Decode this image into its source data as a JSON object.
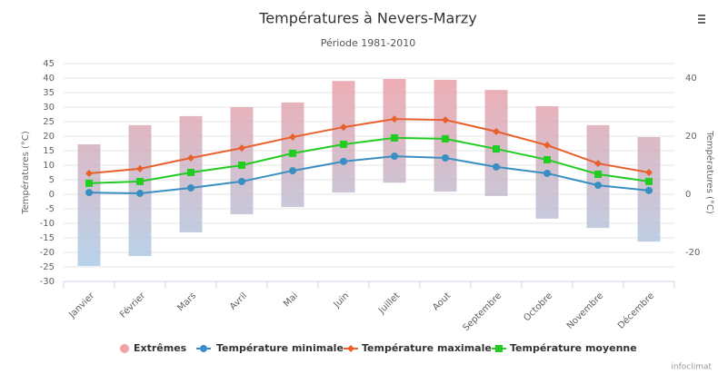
{
  "chart_data": {
    "type": "line",
    "title": "Températures à Nevers-Marzy",
    "subtitle": "Période 1981-2010",
    "y_label": "Températures (°C)",
    "y2_label": "Températures (°C)",
    "credits": "infoclimat",
    "categories": [
      "Janvier",
      "Février",
      "Mars",
      "Avril",
      "Mai",
      "Juin",
      "Juillet",
      "Aout",
      "Septembre",
      "Octobre",
      "Novembre",
      "Décembre"
    ],
    "ylim": [
      -30,
      45
    ],
    "yticks": [
      -30,
      -25,
      -20,
      -15,
      -10,
      -5,
      0,
      5,
      10,
      15,
      20,
      25,
      30,
      35,
      40,
      45
    ],
    "y2lim": [
      -30,
      45
    ],
    "y2ticks": [
      -20,
      0,
      20,
      40
    ],
    "grid": true,
    "legend": "bottom",
    "series": [
      {
        "name": "Extrêmes",
        "type": "columnrange",
        "color": "#f4a0a4",
        "gradient": [
          "#f09ca2",
          "#a6cfec"
        ],
        "values": [
          [
            -24.7,
            17.2
          ],
          [
            -21.3,
            23.8
          ],
          [
            -13.1,
            26.9
          ],
          [
            -6.9,
            30
          ],
          [
            -4.4,
            31.6
          ],
          [
            0.6,
            39
          ],
          [
            4,
            39.7
          ],
          [
            0.9,
            39.4
          ],
          [
            -0.6,
            35.9
          ],
          [
            -8.4,
            30.3
          ],
          [
            -11.6,
            23.8
          ],
          [
            -16.3,
            19.7
          ]
        ]
      },
      {
        "name": "Température minimale",
        "type": "line",
        "marker": "circle",
        "color": "#3a8fc2",
        "values": [
          0.6,
          0.3,
          2.2,
          4.4,
          8.1,
          11.3,
          13.1,
          12.5,
          9.4,
          7.2,
          3.1,
          1.3
        ]
      },
      {
        "name": "Température maximale",
        "type": "line",
        "marker": "diamond",
        "color": "#e8602c",
        "values": [
          7.2,
          8.8,
          12.5,
          15.9,
          19.7,
          23.1,
          25.9,
          25.6,
          21.6,
          16.9,
          10.6,
          7.5
        ]
      },
      {
        "name": "Température moyenne",
        "type": "line",
        "marker": "square",
        "color": "#22cc22",
        "values": [
          3.8,
          4.4,
          7.5,
          10,
          14.1,
          17.2,
          19.4,
          19.1,
          15.6,
          11.9,
          6.9,
          4.4
        ]
      }
    ]
  }
}
